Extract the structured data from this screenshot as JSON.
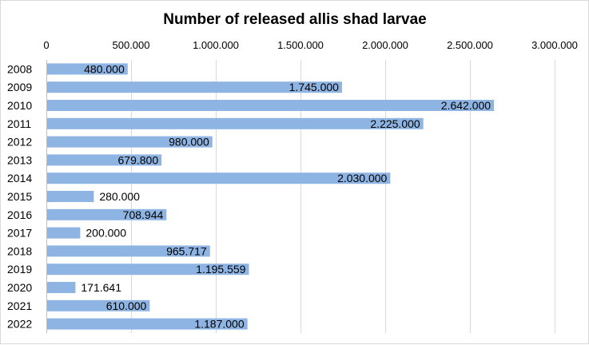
{
  "chart_data": {
    "type": "bar",
    "orientation": "horizontal",
    "title": "Number of released allis shad larvae",
    "xlabel": "",
    "ylabel": "",
    "xlim": [
      0,
      3000000
    ],
    "x_ticks": [
      0,
      500000,
      1000000,
      1500000,
      2000000,
      2500000,
      3000000
    ],
    "x_tick_labels": [
      "0",
      "500.000",
      "1.000.000",
      "1.500.000",
      "2.000.000",
      "2.500.000",
      "3.000.000"
    ],
    "x_axis_position": "top",
    "grid": true,
    "legend": "none",
    "bar_color": "#8eb4e3",
    "grid_color": "#d9d9d9",
    "categories": [
      "2008",
      "2009",
      "2010",
      "2011",
      "2012",
      "2013",
      "2014",
      "2015",
      "2016",
      "2017",
      "2018",
      "2019",
      "2020",
      "2021",
      "2022"
    ],
    "values": [
      480000,
      1745000,
      2642000,
      2225000,
      980000,
      679800,
      2030000,
      280000,
      708944,
      200000,
      965717,
      1195559,
      171641,
      610000,
      1187000
    ],
    "value_labels": [
      "480.000",
      "1.745.000",
      "2.642.000",
      "2.225.000",
      "980.000",
      "679.800",
      "2.030.000",
      "280.000",
      "708.944",
      "200.000",
      "965.717",
      "1.195.559",
      "171.641",
      "610.000",
      "1.187.000"
    ]
  }
}
